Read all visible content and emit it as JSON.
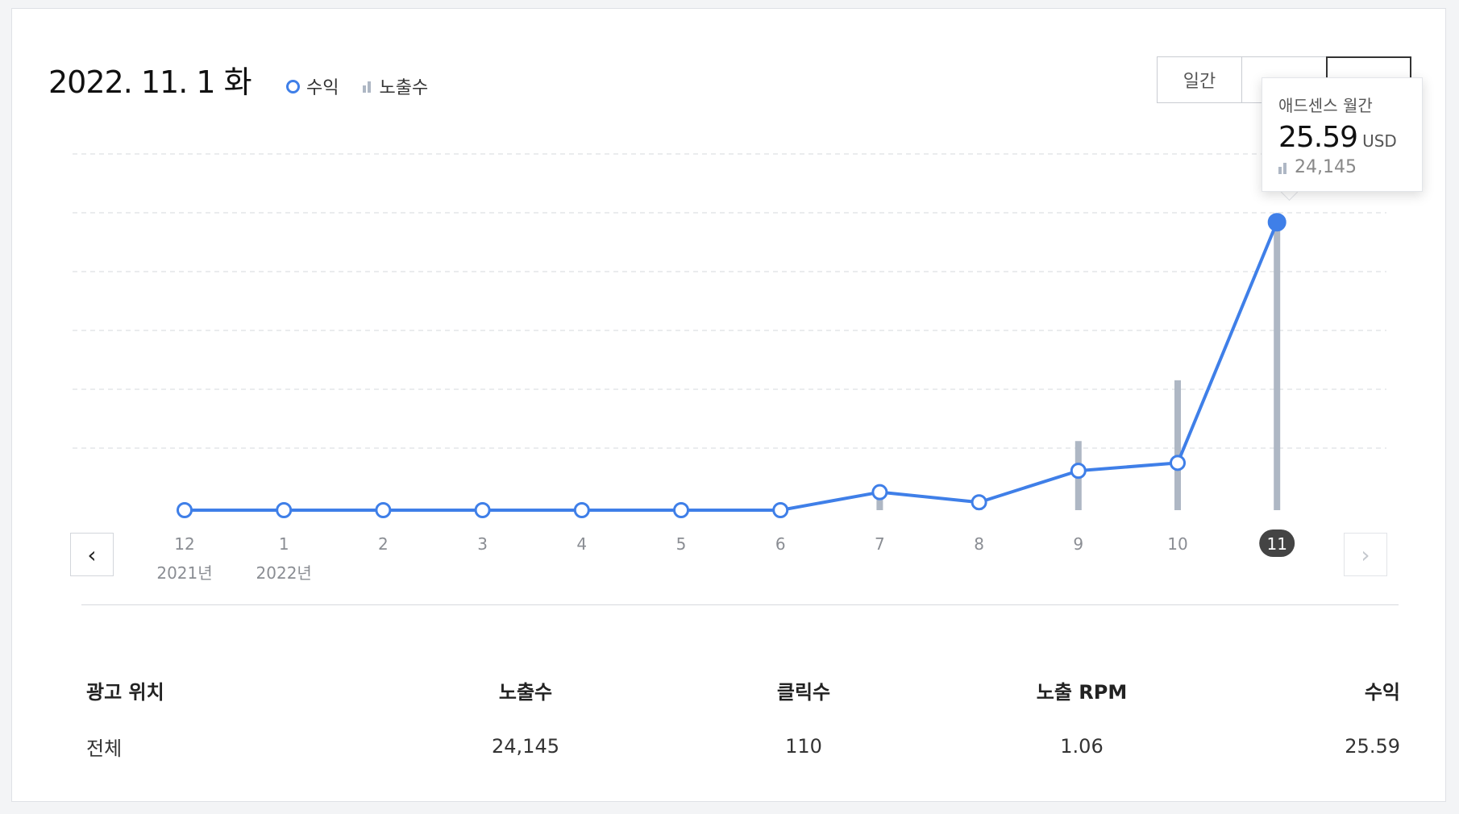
{
  "header": {
    "date_title": "2022. 11. 1 화",
    "legend": {
      "revenue_label": "수익",
      "impressions_label": "노출수"
    },
    "period_tabs": [
      "일간",
      "",
      ""
    ]
  },
  "tooltip": {
    "title": "애드센스 월간",
    "value": "25.59",
    "unit": "USD",
    "impressions": "24,145"
  },
  "colors": {
    "line": "#3f7fe8",
    "bar": "#aeb7c4",
    "selected_month_badge": "#444444"
  },
  "icons": {
    "prev": "chevron-left-icon",
    "next": "chevron-right-icon"
  },
  "chart_data": {
    "type": "line",
    "categories": [
      "12",
      "1",
      "2",
      "3",
      "4",
      "5",
      "6",
      "7",
      "8",
      "9",
      "10",
      "11"
    ],
    "year_labels": [
      "2021년",
      "2022년",
      "",
      "",
      "",
      "",
      "",
      "",
      "",
      "",
      "",
      ""
    ],
    "selected_index": 11,
    "series": [
      {
        "name": "수익",
        "type": "line",
        "values": [
          0,
          0,
          0,
          0,
          0,
          0,
          0,
          1.6,
          0.7,
          3.5,
          4.2,
          25.59
        ]
      },
      {
        "name": "노출수",
        "type": "bar",
        "values": [
          0,
          0,
          0,
          0,
          0,
          0,
          0,
          1500,
          600,
          5800,
          10900,
          24145
        ]
      }
    ],
    "ylim_revenue": [
      0,
      27
    ],
    "ylim_impressions": [
      0,
      25500
    ],
    "grid": true
  },
  "table": {
    "headers": [
      "광고 위치",
      "노출수",
      "클릭수",
      "노출 RPM",
      "수익"
    ],
    "rows": [
      [
        "전체",
        "24,145",
        "110",
        "1.06",
        "25.59"
      ]
    ]
  }
}
